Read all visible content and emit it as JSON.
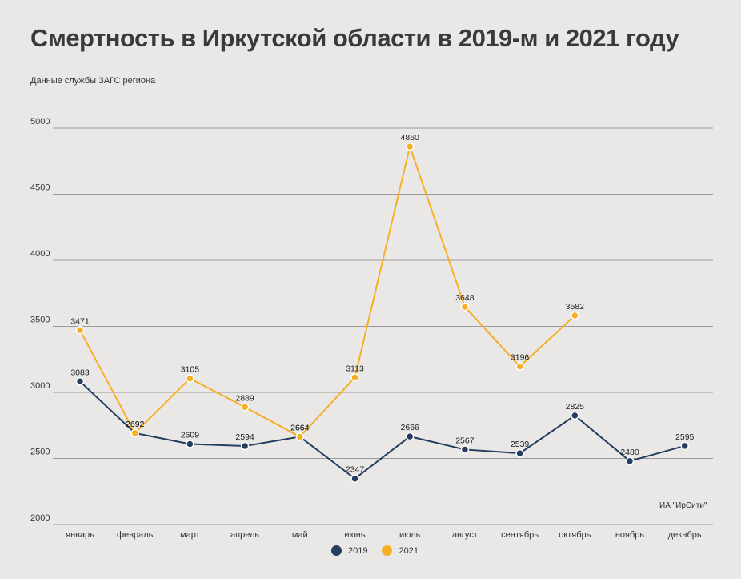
{
  "title": "Смертность в Иркутской области в 2019-м и 2021 году",
  "subtitle": "Данные службы ЗАГС региона",
  "source": "ИА \"ИрСити\"",
  "colors": {
    "series_2019": "#253d5e",
    "series_2021": "#f5b027",
    "grid": "#9a9a9a",
    "text": "#333333"
  },
  "chart_data": {
    "type": "line",
    "categories": [
      "январь",
      "февраль",
      "март",
      "апрель",
      "май",
      "июнь",
      "июль",
      "август",
      "сентябрь",
      "октябрь",
      "ноябрь",
      "декабрь"
    ],
    "ylim": [
      2000,
      5000
    ],
    "yticks": [
      2000,
      2500,
      3000,
      3500,
      4000,
      4500,
      5000
    ],
    "grid": true,
    "legend_position": "bottom-center",
    "series": [
      {
        "name": "2019",
        "color": "#253d5e",
        "values": [
          3083,
          2692,
          2609,
          2594,
          2664,
          2347,
          2666,
          2567,
          2539,
          2825,
          2480,
          2595
        ]
      },
      {
        "name": "2021",
        "color": "#f5b027",
        "values": [
          3471,
          2692,
          3105,
          2889,
          2664,
          3113,
          4860,
          3648,
          3196,
          3582,
          null,
          null
        ]
      }
    ]
  }
}
